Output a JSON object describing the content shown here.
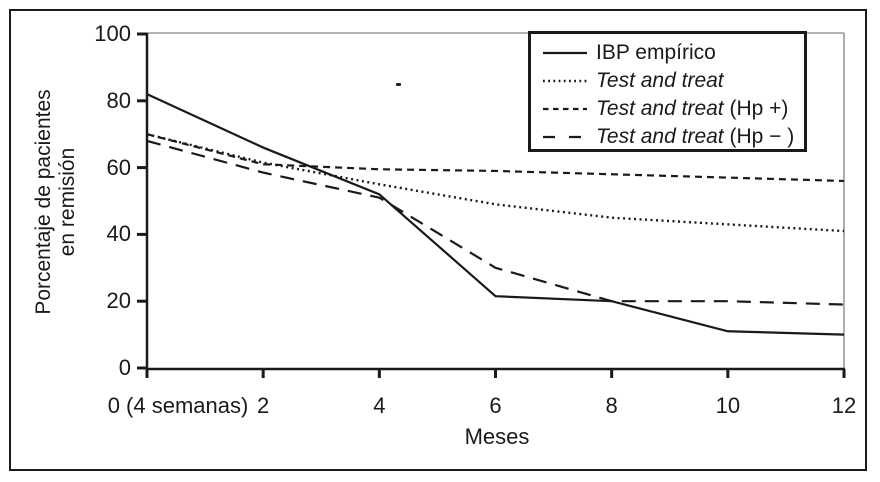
{
  "figure": {
    "y_axis_label_line1": "Porcentaje de pacientes",
    "y_axis_label_line2": "en remisión",
    "x_axis_label": "Meses"
  },
  "legend": {
    "items": [
      {
        "italic": "",
        "regular": "IBP empírico",
        "line_style": "solid"
      },
      {
        "italic": "Test and treat",
        "regular": "",
        "line_style": "dotted"
      },
      {
        "italic": "Test and treat",
        "regular": " (Hp +)",
        "line_style": "short-dash"
      },
      {
        "italic": "Test and treat",
        "regular": " (Hp − )",
        "line_style": "long-dash"
      }
    ]
  },
  "chart_data": {
    "type": "line",
    "x": [
      0,
      2,
      4,
      6,
      8,
      10,
      12
    ],
    "x_tick_labels": [
      "0 (4 semanas)",
      "2",
      "4",
      "6",
      "8",
      "10",
      "12"
    ],
    "y_ticks": [
      0,
      20,
      40,
      60,
      80,
      100
    ],
    "y_tick_labels": [
      "0",
      "20",
      "40",
      "60",
      "80",
      "100"
    ],
    "xlabel": "Meses",
    "ylabel": "Porcentaje de pacientes en remisión",
    "xlim": [
      0,
      12
    ],
    "ylim": [
      0,
      100
    ],
    "grid": false,
    "legend_position": "top-right",
    "series": [
      {
        "name": "IBP empírico",
        "line_style": "solid",
        "values": [
          82,
          66,
          52,
          21.5,
          20,
          11,
          10
        ]
      },
      {
        "name": "Test and treat",
        "line_style": "dotted",
        "values": [
          70,
          61.5,
          55,
          49,
          45,
          43,
          41
        ]
      },
      {
        "name": "Test and treat (Hp +)",
        "line_style": "short-dash",
        "values": [
          70,
          61,
          59.5,
          59,
          58,
          57,
          56
        ]
      },
      {
        "name": "Test and treat (Hp −)",
        "line_style": "long-dash",
        "values": [
          68,
          58.5,
          51,
          30,
          20,
          20,
          19
        ]
      }
    ]
  },
  "colors": {
    "line": "#1a1a1a",
    "frame_gray": "#9a9a9a",
    "background": "#ffffff"
  }
}
